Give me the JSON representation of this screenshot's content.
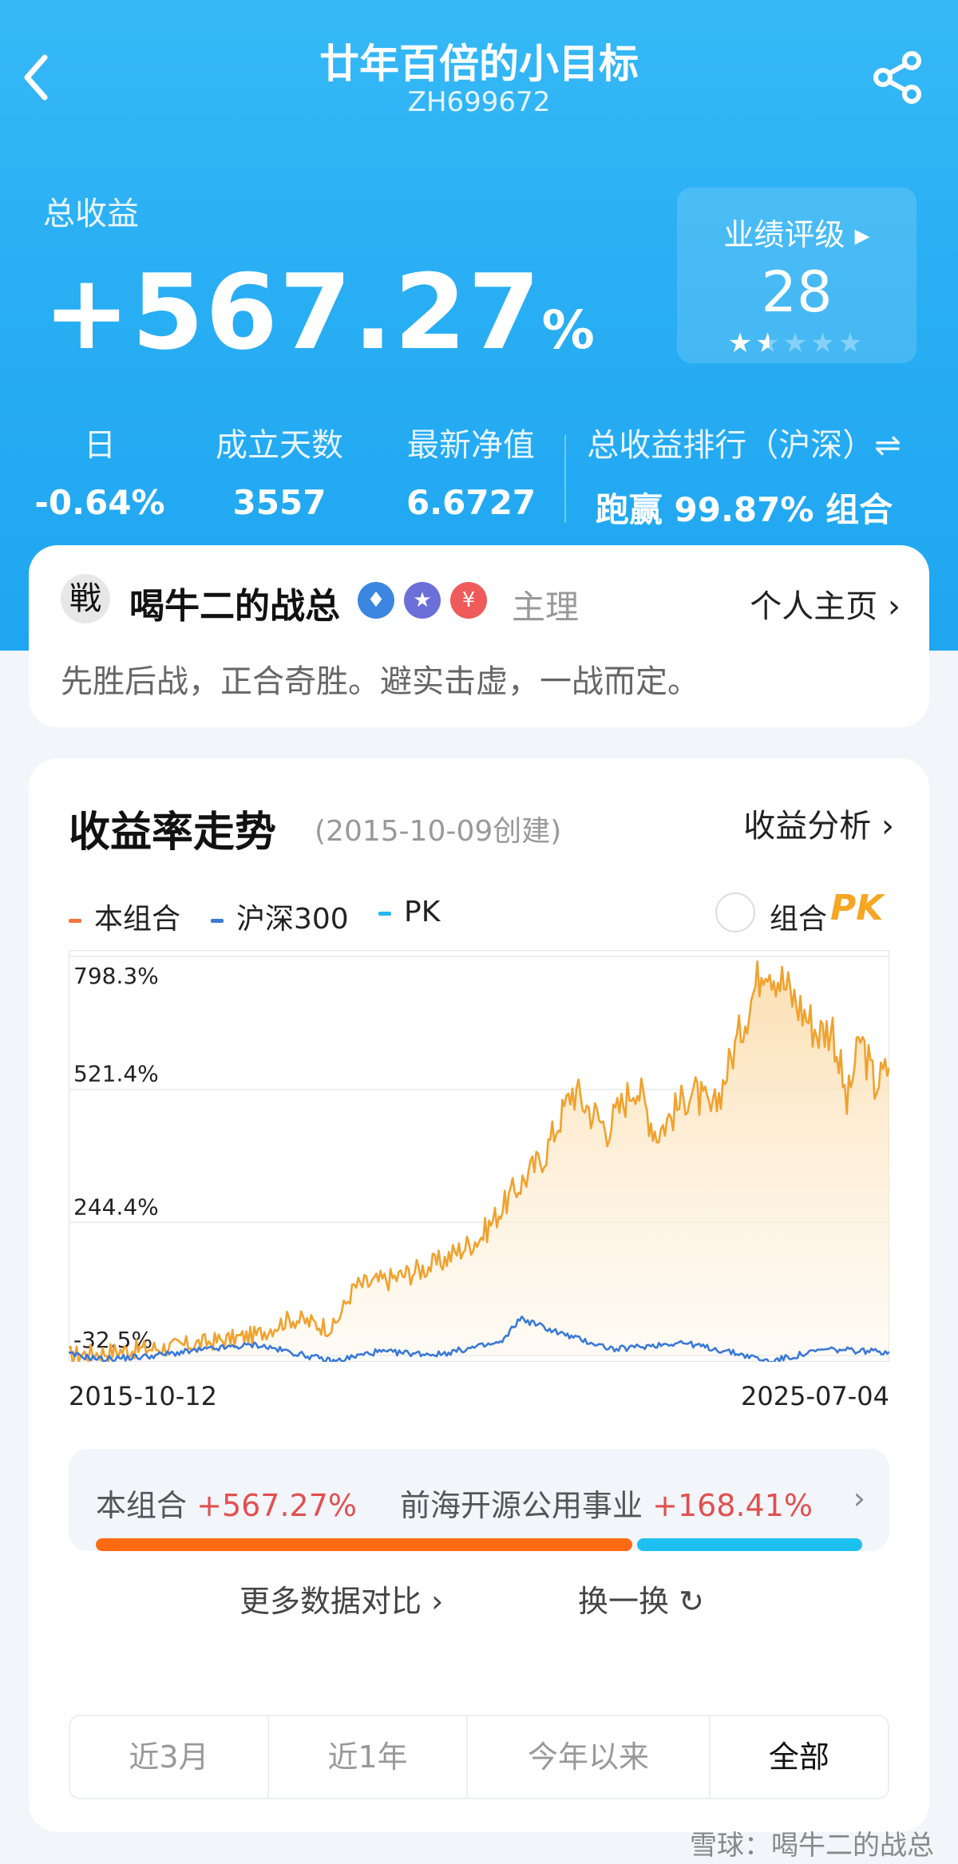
{
  "header": {
    "title": "廿年百倍的小目标",
    "code": "ZH699672"
  },
  "summary": {
    "total_label": "总收益",
    "total_value": "+567.27",
    "total_unit": "%",
    "rating_label": "业绩评级 ▸",
    "rating_value": "28",
    "rating_stars_filled": 1.5,
    "rating_stars_total": 5
  },
  "stats": [
    {
      "label": "日",
      "value": "-0.64%"
    },
    {
      "label": "成立天数",
      "value": "3557"
    },
    {
      "label": "最新净值",
      "value": "6.6727"
    },
    {
      "label": "总收益排行（沪深）⇌",
      "value": "跑赢 99.87% 组合"
    }
  ],
  "author": {
    "avatar_char": "戦",
    "name": "喝牛二的战总",
    "role": "主理",
    "homepage_label": "个人主页 ›",
    "motto": "先胜后战，正合奇胜。避实击虚，一战而定。"
  },
  "chart_section": {
    "title": "收益率走势",
    "created": "(2015-10-09创建)",
    "analysis_label": "收益分析 ›",
    "legend": [
      {
        "name": "本组合",
        "color": "#f2763a"
      },
      {
        "name": "沪深300",
        "color": "#3a79d8"
      },
      {
        "name": "PK",
        "color": "#23b8ee"
      }
    ],
    "pk_label": "组合",
    "pk_logo": "PK",
    "x_start": "2015-10-12",
    "x_end": "2025-07-04"
  },
  "chart_data": {
    "type": "line",
    "x_range": [
      "2015-10-12",
      "2025-07-04"
    ],
    "y_ticks": [
      "798.3%",
      "521.4%",
      "244.4%",
      "-32.5%"
    ],
    "ylim": [
      -32.5,
      798.3
    ],
    "series": [
      {
        "name": "本组合",
        "color": "#f0a22e",
        "points": [
          [
            "2015-10-12",
            -32
          ],
          [
            "2016-01-15",
            -28
          ],
          [
            "2016-06-01",
            -22
          ],
          [
            "2017-01-01",
            -15
          ],
          [
            "2017-06-01",
            -5
          ],
          [
            "2018-01-01",
            10
          ],
          [
            "2018-06-01",
            45
          ],
          [
            "2018-12-01",
            25
          ],
          [
            "2019-03-01",
            110
          ],
          [
            "2019-09-01",
            130
          ],
          [
            "2020-03-01",
            160
          ],
          [
            "2020-09-01",
            215
          ],
          [
            "2021-01-15",
            305
          ],
          [
            "2021-06-01",
            385
          ],
          [
            "2021-10-01",
            520
          ],
          [
            "2022-03-01",
            440
          ],
          [
            "2022-07-01",
            535
          ],
          [
            "2022-10-01",
            430
          ],
          [
            "2023-03-01",
            520
          ],
          [
            "2023-06-01",
            470
          ],
          [
            "2023-10-01",
            650
          ],
          [
            "2024-01-15",
            798
          ],
          [
            "2024-05-01",
            720
          ],
          [
            "2024-09-01",
            640
          ],
          [
            "2024-11-01",
            650
          ],
          [
            "2025-01-01",
            490
          ],
          [
            "2025-03-01",
            630
          ],
          [
            "2025-05-01",
            530
          ],
          [
            "2025-07-04",
            567
          ]
        ]
      },
      {
        "name": "沪深300",
        "color": "#3a79d8",
        "points": [
          [
            "2015-10-12",
            -30
          ],
          [
            "2016-03-01",
            -40
          ],
          [
            "2016-09-01",
            -35
          ],
          [
            "2017-06-01",
            -20
          ],
          [
            "2018-01-01",
            -10
          ],
          [
            "2018-12-01",
            -45
          ],
          [
            "2019-06-01",
            -25
          ],
          [
            "2020-03-01",
            -30
          ],
          [
            "2020-12-01",
            -5
          ],
          [
            "2021-02-15",
            45
          ],
          [
            "2021-09-01",
            10
          ],
          [
            "2022-04-01",
            -20
          ],
          [
            "2023-01-15",
            -5
          ],
          [
            "2023-10-01",
            -30
          ],
          [
            "2024-02-01",
            -45
          ],
          [
            "2024-10-01",
            -20
          ],
          [
            "2025-07-04",
            -25
          ]
        ]
      }
    ],
    "grid": true
  },
  "compare": {
    "a_name": "本组合",
    "a_value": "+567.27%",
    "b_name": "前海开源公用事业",
    "b_value": "+168.41%",
    "a_share": 0.7,
    "chevron": "›"
  },
  "links": {
    "more": "更多数据对比 ›",
    "swap": "换一换 ↻"
  },
  "periods": [
    "近3月",
    "近1年",
    "今年以来",
    "全部"
  ],
  "watermark": "雪球：喝牛二的战总"
}
